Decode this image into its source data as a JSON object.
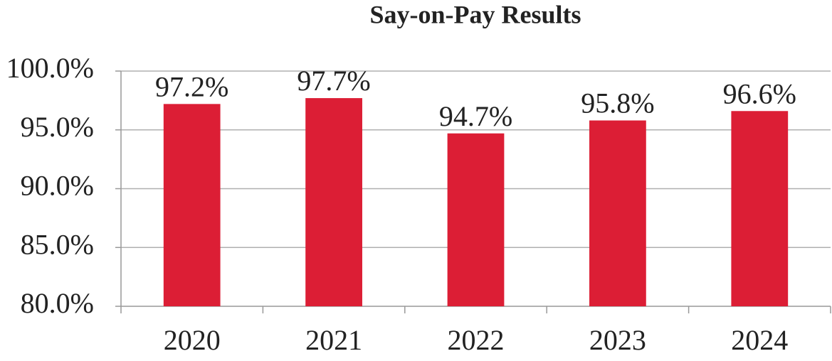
{
  "chart_data": {
    "type": "bar",
    "title": "Say-on-Pay Results",
    "categories": [
      "2020",
      "2021",
      "2022",
      "2023",
      "2024"
    ],
    "values": [
      97.2,
      97.7,
      94.7,
      95.8,
      96.6
    ],
    "value_labels": [
      "97.2%",
      "97.7%",
      "94.7%",
      "95.8%",
      "96.6%"
    ],
    "color": "#dc1e35",
    "ylim": [
      80,
      100
    ],
    "yticks": [
      {
        "value": 80,
        "label": "80.0%"
      },
      {
        "value": 85,
        "label": "85.0%"
      },
      {
        "value": 90,
        "label": "90.0%"
      },
      {
        "value": 95,
        "label": "95.0%"
      },
      {
        "value": 100,
        "label": "100.0%"
      }
    ],
    "grid": true
  }
}
